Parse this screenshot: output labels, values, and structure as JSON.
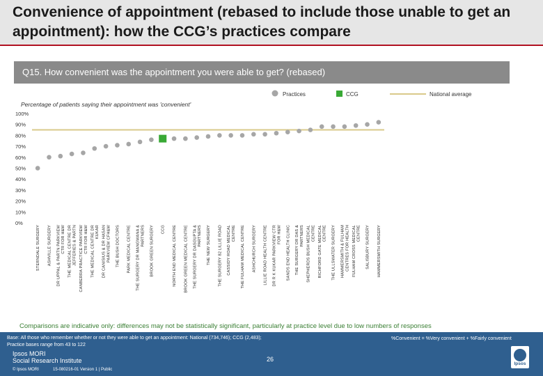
{
  "header": {
    "title": "Convenience of appointment (rebased to include those unable to get an appointment): how the CCG’s practices compare"
  },
  "question": "Q15. How convenient was the appointment you were able to get? (rebased)",
  "legend": {
    "practices": "Practices",
    "ccg": "CCG",
    "national": "National average"
  },
  "colors": {
    "practice": "#a6a6a6",
    "ccg": "#39a935",
    "national": "#d9c98a",
    "footer": "#2f5f8f",
    "accent": "#b01020"
  },
  "chart_data": {
    "type": "scatter",
    "subtitle": "Percentage of patients saying their appointment was 'convenient'",
    "y_ticks": [
      "0%",
      "10%",
      "20%",
      "30%",
      "40%",
      "50%",
      "60%",
      "70%",
      "80%",
      "90%",
      "100%"
    ],
    "ylim": [
      0,
      100
    ],
    "national_average": 85,
    "points": [
      {
        "label": "STERNDALE SURGERY",
        "value": 50,
        "kind": "practice"
      },
      {
        "label": "ASHVILLE SURGERY",
        "value": 60,
        "kind": "practice"
      },
      {
        "label": "DR UPPAL & PARTN PARKVIEW CTR FOR H&W",
        "value": 61,
        "kind": "practice"
      },
      {
        "label": "THE MEDICAL CENTRE DR JEFFERIES & PARTN",
        "value": 63,
        "kind": "practice"
      },
      {
        "label": "CANBERRA PRACTICE PARKVIEW CTR FOR H&W",
        "value": 64,
        "kind": "practice"
      },
      {
        "label": "THE MEDICAL CENTRE DR KUKAR",
        "value": 68,
        "kind": "practice"
      },
      {
        "label": "DR CANISIUS & DR HASAN PARKVIEW CFH&W",
        "value": 70,
        "kind": "practice"
      },
      {
        "label": "THE BUSH DOCTORS",
        "value": 71,
        "kind": "practice"
      },
      {
        "label": "PARK MEDICAL CENTRE",
        "value": 72,
        "kind": "practice"
      },
      {
        "label": "THE SURGERY DR MANGWANA & PARTNERS",
        "value": 74,
        "kind": "practice"
      },
      {
        "label": "BROOK GREEN SURGERY",
        "value": 76,
        "kind": "practice"
      },
      {
        "label": "CCG",
        "value": 77,
        "kind": "ccg"
      },
      {
        "label": "NORTH END MEDICAL CENTRE",
        "value": 77,
        "kind": "practice"
      },
      {
        "label": "BROOK GREEN MEDICAL CENTRE",
        "value": 77,
        "kind": "practice"
      },
      {
        "label": "THE SURGERY DR DASGUPTA & PARTNERS",
        "value": 78,
        "kind": "practice"
      },
      {
        "label": "THE NEW SURGERY",
        "value": 79,
        "kind": "practice"
      },
      {
        "label": "THE SURGERY 82 LILLIE ROAD",
        "value": 80,
        "kind": "practice"
      },
      {
        "label": "CASSIDY ROAD MEDICAL CENTRE",
        "value": 80,
        "kind": "practice"
      },
      {
        "label": "THE FULHAM MEDICAL CENTRE",
        "value": 80,
        "kind": "practice"
      },
      {
        "label": "ASHCHURCH SURGERY",
        "value": 81,
        "kind": "practice"
      },
      {
        "label": "LILLIE ROAD HEALTH CENTRE",
        "value": 81,
        "kind": "practice"
      },
      {
        "label": "DR R K KUKAR PARKVIEW CTR FOR H&W",
        "value": 82,
        "kind": "practice"
      },
      {
        "label": "SANDS END HEALTH CLINIC",
        "value": 83,
        "kind": "practice"
      },
      {
        "label": "THE SURGERY DR DAS & PARTNERS",
        "value": 84,
        "kind": "practice"
      },
      {
        "label": "SHEPHERDS BUSH MEDICAL CENTRE",
        "value": 85,
        "kind": "practice"
      },
      {
        "label": "RICHFORD GATE MEDICAL CENTRE",
        "value": 88,
        "kind": "practice"
      },
      {
        "label": "THE ULLSWATER SURGERY",
        "value": 88,
        "kind": "practice"
      },
      {
        "label": "HAMMERSMITH & FULHAM CENTRES FOR HEALTH",
        "value": 88,
        "kind": "practice"
      },
      {
        "label": "FULHAM CROSS MEDICAL CENTRE",
        "value": 89,
        "kind": "practice"
      },
      {
        "label": "SALISBURY SURGERY",
        "value": 90,
        "kind": "practice"
      },
      {
        "label": "HAMMERSMITH SURGERY",
        "value": 92,
        "kind": "practice"
      }
    ]
  },
  "caveat": "Comparisons are indicative only: differences may not be statistically significant, particularly at practice level due to low numbers of responses",
  "footer": {
    "base_line1": "Base: All those who remember whether or not they were able to get an appointment: National (734,746); CCG (2,483);",
    "base_line2": "Practice bases range from 43 to 122",
    "definition": "%Convenient = %Very convenient + %Fairly convenient",
    "ipsos_line1": "Ipsos MORI",
    "ipsos_line2": "Social Research Institute",
    "page": "26",
    "copyright": "© Ipsos MORI",
    "version": "15-080216-01 Version 1 | Public",
    "logo_text": "Ipsos"
  }
}
